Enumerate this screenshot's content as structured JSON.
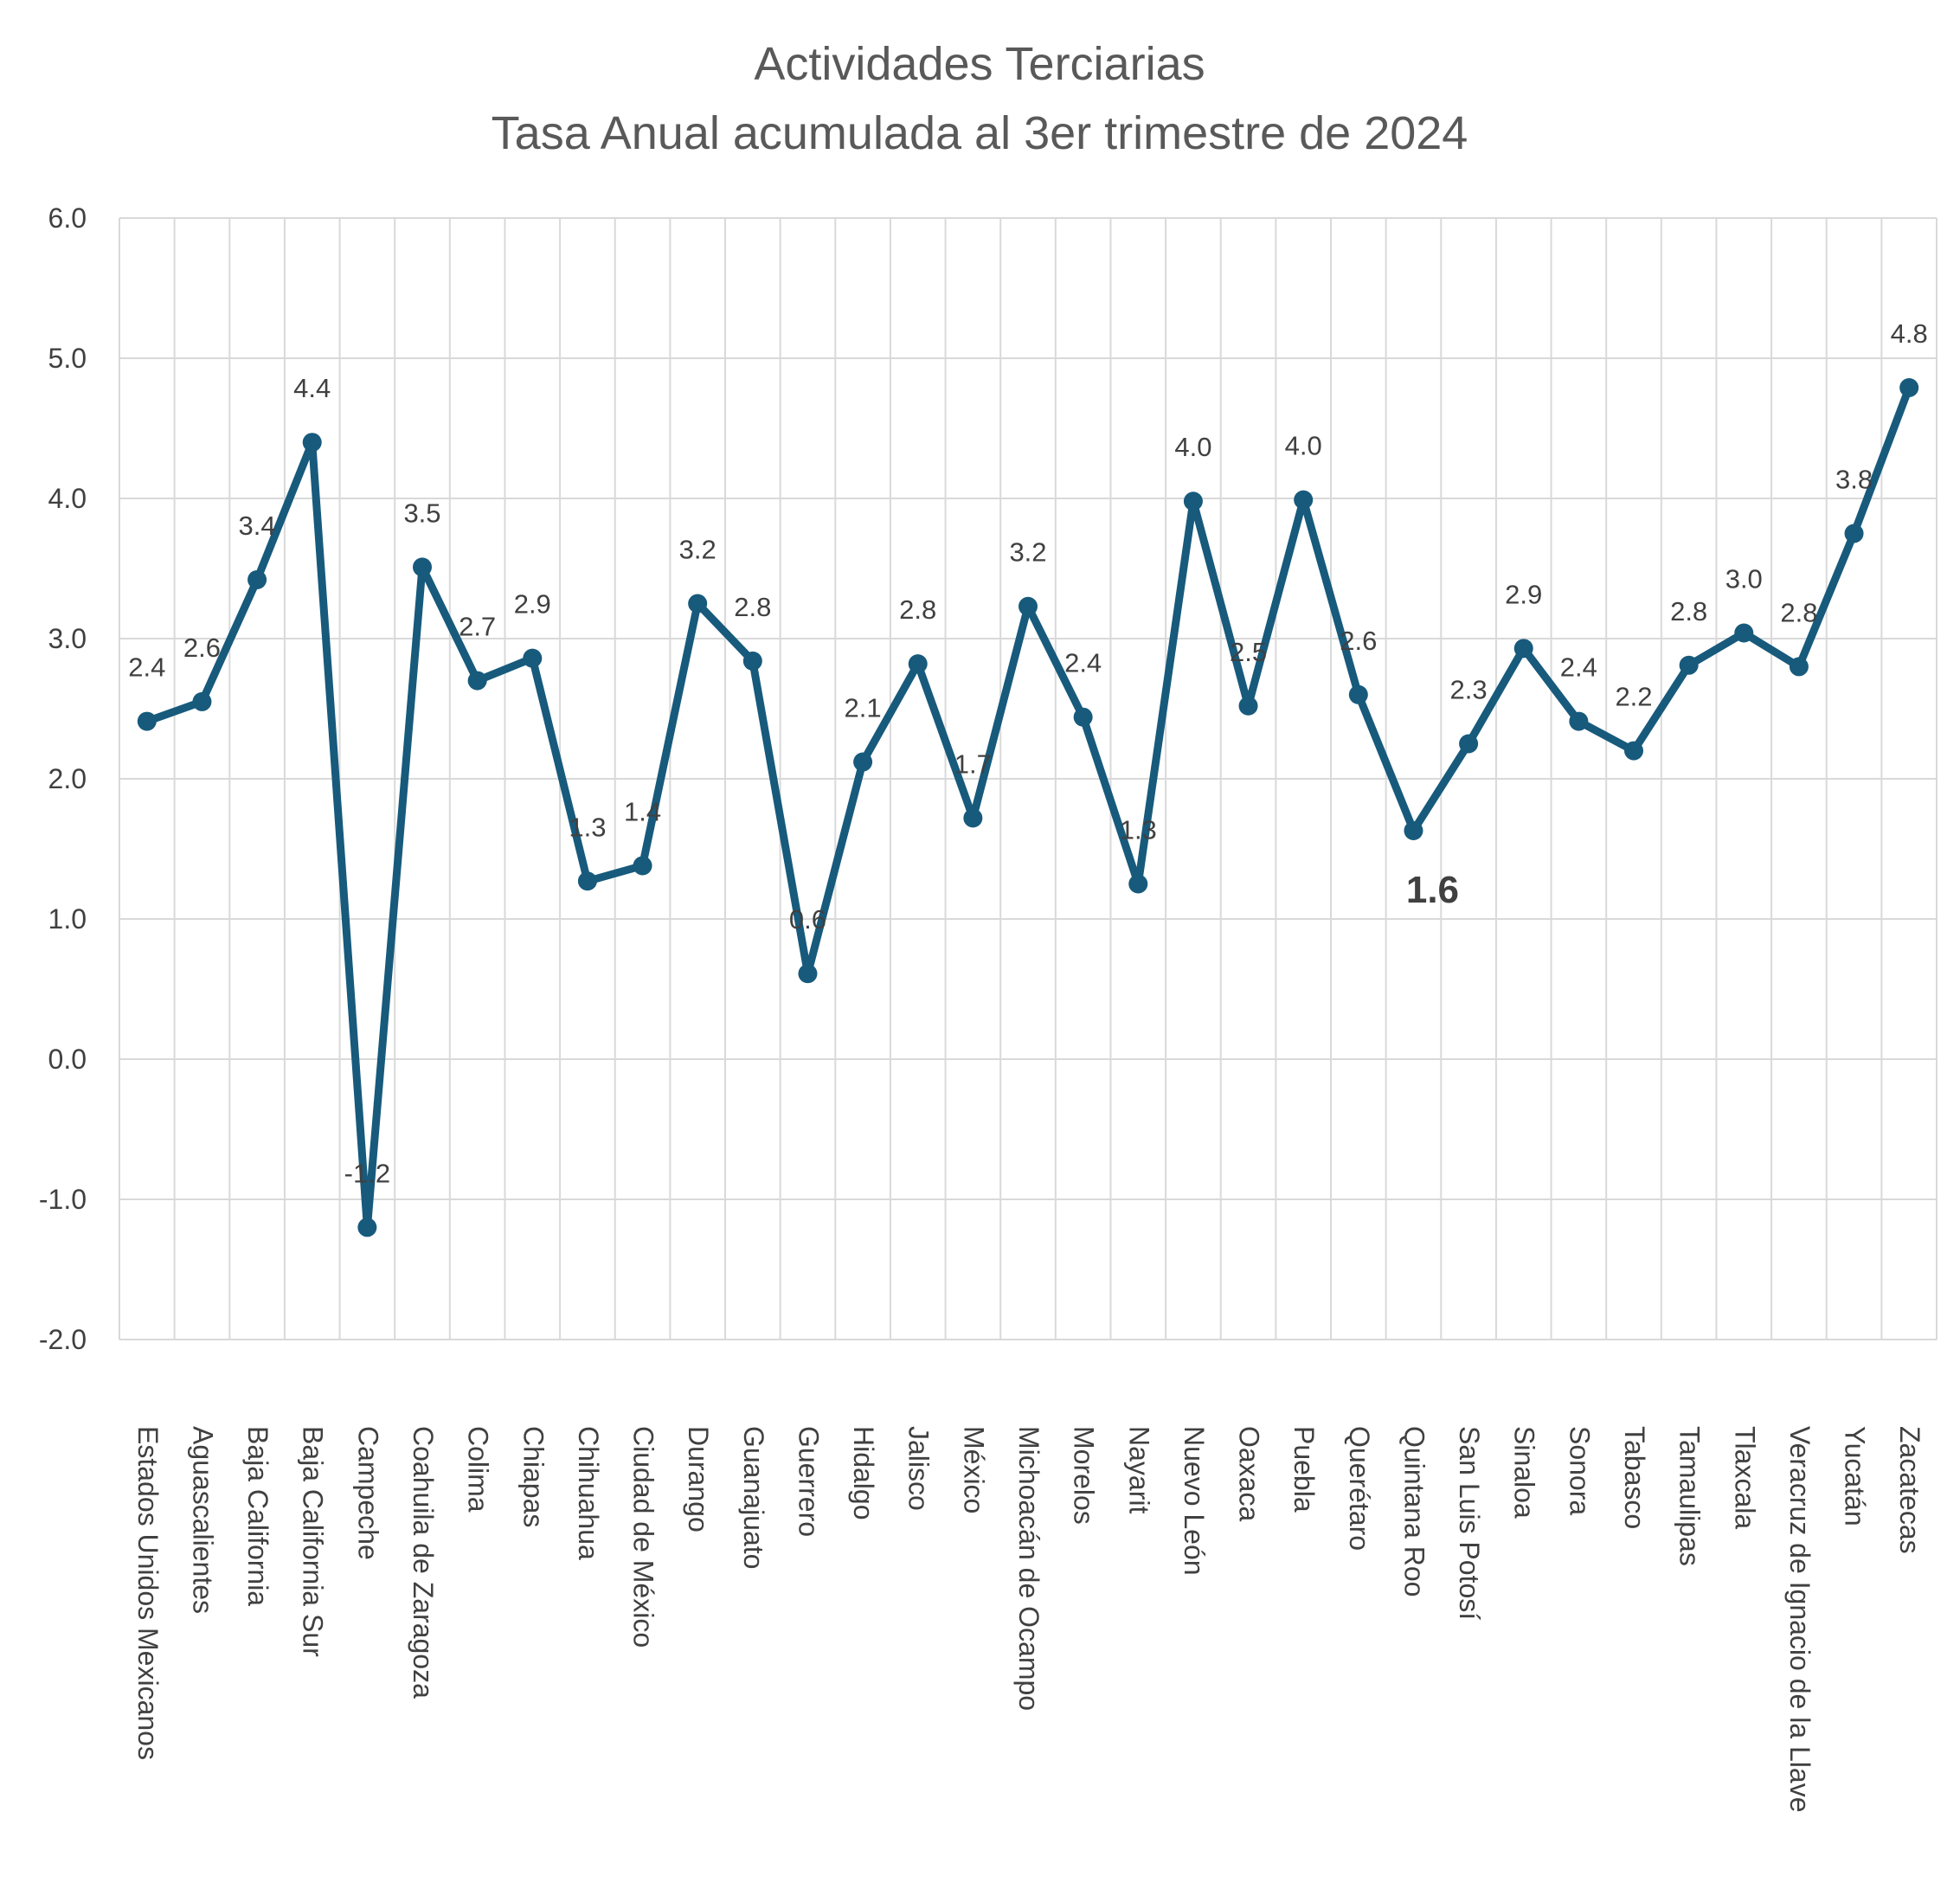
{
  "chart_data": {
    "type": "line",
    "title": "Actividades Terciarias",
    "subtitle": "Tasa Anual acumulada al 3er trimestre de 2024",
    "ylim": [
      -2.0,
      6.0
    ],
    "ytick_step": 1.0,
    "y_tick_labels": [
      "-2.0",
      "-1.0",
      "0.0",
      "1.0",
      "2.0",
      "3.0",
      "4.0",
      "5.0",
      "6.0"
    ],
    "grid": true,
    "legend": "none",
    "colors": {
      "line": "#175a7c",
      "grid": "#d9d9d9",
      "text": "#404040",
      "title": "#595959"
    },
    "categories": [
      "Estados Unidos Mexicanos",
      "Aguascalientes",
      "Baja California",
      "Baja California Sur",
      "Campeche",
      "Coahuila de Zaragoza",
      "Colima",
      "Chiapas",
      "Chihuahua",
      "Ciudad de México",
      "Durango",
      "Guanajuato",
      "Guerrero",
      "Hidalgo",
      "Jalisco",
      "México",
      "Michoacán de Ocampo",
      "Morelos",
      "Nayarit",
      "Nuevo León",
      "Oaxaca",
      "Puebla",
      "Querétaro",
      "Quintana Roo",
      "San Luis Potosí",
      "Sinaloa",
      "Sonora",
      "Tabasco",
      "Tamaulipas",
      "Tlaxcala",
      "Veracruz de Ignacio de la Llave",
      "Yucatán",
      "Zacatecas"
    ],
    "values": [
      2.41,
      2.55,
      3.42,
      4.4,
      -1.2,
      3.51,
      2.7,
      2.86,
      1.27,
      1.38,
      3.25,
      2.84,
      0.61,
      2.12,
      2.82,
      1.72,
      3.23,
      2.44,
      1.25,
      3.98,
      2.52,
      3.99,
      2.6,
      1.63,
      2.25,
      2.93,
      2.41,
      2.2,
      2.81,
      3.04,
      2.8,
      3.75,
      4.79
    ],
    "labels": [
      "2.4",
      "2.6",
      "3.4",
      "4.4",
      "-1.2",
      "3.5",
      "2.7",
      "2.9",
      "1.3",
      "1.4",
      "3.2",
      "2.8",
      "0.6",
      "2.1",
      "2.8",
      "1.7",
      "3.2",
      "2.4",
      "1.3",
      "4.0",
      "2.5",
      "4.0",
      "2.6",
      "1.6",
      "2.3",
      "2.9",
      "2.4",
      "2.2",
      "2.8",
      "3.0",
      "2.8",
      "3.8",
      "4.8"
    ],
    "highlight_index": 23
  }
}
